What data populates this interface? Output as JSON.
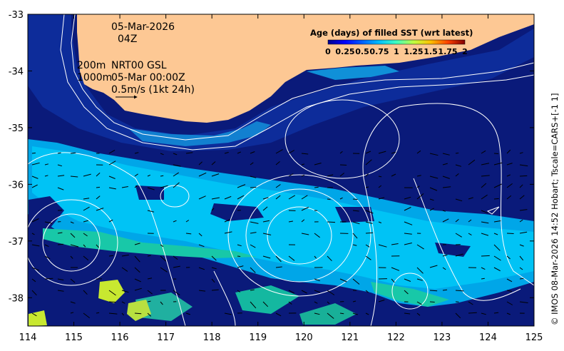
{
  "map": {
    "date_label": "05-Mar-2026",
    "hour_label": "04Z",
    "isobath_label_200": "200m",
    "isobath_label_1000": "1000m",
    "model_label": "NRT00 GSL",
    "model_time_label": "05-Mar 00:00Z",
    "scale_label": "0.5m/s (1kt 24h)",
    "credit": "© IMOS 08-Mar-2026 14:52 Hobart; Tscale=CARS+[-1 1]",
    "axes": {
      "x_ticks": [
        "114",
        "115",
        "116",
        "117",
        "118",
        "119",
        "120",
        "121",
        "122",
        "123",
        "124",
        "125"
      ],
      "y_ticks": [
        "-33",
        "-34",
        "-35",
        "-36",
        "-37",
        "-38"
      ],
      "xlim": [
        114,
        125
      ],
      "ylim": [
        -38.5,
        -33
      ]
    },
    "colorbar": {
      "title": "Age (days) of filled SST (wrt latest)",
      "ticks": [
        "0",
        "0.25",
        "0.5",
        "0.75",
        "1",
        "1.25",
        "1.5",
        "1.75",
        "2"
      ],
      "range": [
        0,
        2
      ],
      "colormap": [
        "#00008f",
        "#0000ff",
        "#0080ff",
        "#00ffff",
        "#80ff80",
        "#ffff00",
        "#ff8000",
        "#ff0000",
        "#800000"
      ]
    },
    "colors": {
      "land": "#fdc894",
      "ocean_age_0": "#0a1a7a",
      "ocean_age_0_5": "#00a6e8",
      "ocean_age_0_75": "#00c3f5",
      "ocean_age_0_9": "#18c8a8",
      "ocean_age_1_3": "#c8e830",
      "contour": "#ffffff",
      "vector": "#000000"
    }
  }
}
